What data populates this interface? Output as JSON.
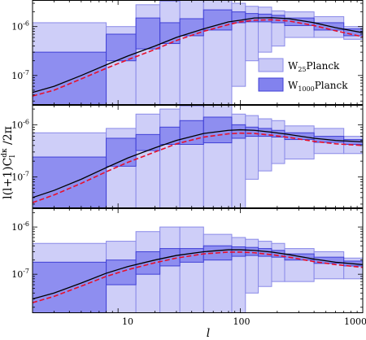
{
  "colors": {
    "wide_fill": "#c9c9f7",
    "wide_edge": "#8a8ae8",
    "narrow_fill": "#8282ee",
    "narrow_edge": "#4040d6",
    "theory": "#000000",
    "model": "#e8102a"
  },
  "chart_data": {
    "type": "bar",
    "xlabel_main": "l",
    "ylabel": {
      "main": "l(l+1)C",
      "sub": "l",
      "sup": "dκ",
      "tail": " /2π"
    },
    "xscale": "log",
    "yscale": "log",
    "xlim": [
      2,
      1000
    ],
    "x_ticks": [
      10,
      100,
      1000
    ],
    "x_tick_labels": [
      "10",
      "100",
      "1000"
    ],
    "y_tick_labels": [
      {
        "base": "10",
        "exp": "-6"
      },
      {
        "base": "10",
        "exp": "-7"
      }
    ],
    "bins": [
      {
        "lo": 2,
        "hi": 8
      },
      {
        "lo": 8,
        "hi": 14
      },
      {
        "lo": 14,
        "hi": 22
      },
      {
        "lo": 22,
        "hi": 32
      },
      {
        "lo": 32,
        "hi": 50
      },
      {
        "lo": 50,
        "hi": 85
      },
      {
        "lo": 85,
        "hi": 110
      },
      {
        "lo": 110,
        "hi": 140
      },
      {
        "lo": 140,
        "hi": 180
      },
      {
        "lo": 180,
        "hi": 230
      },
      {
        "lo": 230,
        "hi": 400
      },
      {
        "lo": 400,
        "hi": 700
      },
      {
        "lo": 700,
        "hi": 1000
      }
    ],
    "legend": {
      "placement": "lower-right of top panel",
      "entries": [
        {
          "base": "W",
          "sub": "25",
          "tail": "Planck",
          "style": "wide"
        },
        {
          "base": "W",
          "sub": "1000",
          "tail": "Planck",
          "style": "narrow"
        }
      ]
    },
    "panels": [
      {
        "ylim": [
          2.5e-08,
          3.5e-06
        ],
        "theory": {
          "l": [
            2,
            3,
            5,
            8,
            12,
            20,
            30,
            50,
            80,
            100,
            130,
            180,
            250,
            400,
            600,
            1000
          ],
          "cl": [
            4.5e-08,
            6e-08,
            1e-07,
            1.65e-07,
            2.5e-07,
            4e-07,
            6e-07,
            9e-07,
            1.25e-06,
            1.35e-06,
            1.5e-06,
            1.52e-06,
            1.45e-06,
            1.2e-06,
            9.5e-07,
            7.5e-07
          ]
        },
        "model": {
          "l": [
            2,
            3,
            5,
            8,
            12,
            20,
            30,
            50,
            80,
            100,
            130,
            180,
            250,
            400,
            600,
            1000
          ],
          "cl": [
            3.8e-08,
            5e-08,
            8.5e-08,
            1.4e-07,
            2.1e-07,
            3.4e-07,
            5.2e-07,
            8e-07,
            1.1e-06,
            1.25e-06,
            1.35e-06,
            1.38e-06,
            1.3e-06,
            1.05e-06,
            8.2e-07,
            6.2e-07
          ]
        },
        "wide": [
          {
            "lo": 2.5e-08,
            "hi": 1.2e-06
          },
          {
            "lo": 2.5e-08,
            "hi": 1e-06
          },
          {
            "lo": 2.5e-08,
            "hi": 2.8e-06
          },
          {
            "lo": 2.5e-08,
            "hi": 3.3e-06
          },
          {
            "lo": 2.5e-08,
            "hi": 3.6e-06
          },
          {
            "lo": 2.5e-08,
            "hi": 3.5e-06
          },
          {
            "lo": 6e-08,
            "hi": 3e-06
          },
          {
            "lo": 2e-07,
            "hi": 2.6e-06
          },
          {
            "lo": 3e-07,
            "hi": 2.5e-06
          },
          {
            "lo": 4e-07,
            "hi": 2.1e-06
          },
          {
            "lo": 6e-07,
            "hi": 2e-06
          },
          {
            "lo": 6e-07,
            "hi": 1.6e-06
          },
          {
            "lo": 5.5e-07,
            "hi": 1e-06
          }
        ],
        "narrow": [
          {
            "lo": 2.5e-08,
            "hi": 3e-07
          },
          {
            "lo": 2e-07,
            "hi": 7e-07
          },
          {
            "lo": 3.5e-07,
            "hi": 1.5e-06
          },
          {
            "lo": 4.5e-07,
            "hi": 1.2e-06
          },
          {
            "lo": 6.5e-07,
            "hi": 1.45e-06
          },
          {
            "lo": 8.5e-07,
            "hi": 2.2e-06
          },
          {
            "lo": 1.2e-06,
            "hi": 2e-06
          },
          {
            "lo": 1.25e-06,
            "hi": 1.85e-06
          },
          {
            "lo": 1.25e-06,
            "hi": 1.8e-06
          },
          {
            "lo": 1.2e-06,
            "hi": 1.7e-06
          },
          {
            "lo": 1.05e-06,
            "hi": 1.5e-06
          },
          {
            "lo": 8.5e-07,
            "hi": 1.2e-06
          },
          {
            "lo": 6.5e-07,
            "hi": 9e-07
          }
        ]
      },
      {
        "ylim": [
          2.5e-08,
          2.4e-06
        ],
        "theory": {
          "l": [
            2,
            3,
            5,
            8,
            12,
            20,
            30,
            50,
            80,
            100,
            130,
            180,
            250,
            400,
            600,
            1000
          ],
          "cl": [
            4e-08,
            5.5e-08,
            9e-08,
            1.5e-07,
            2.3e-07,
            3.6e-07,
            5e-07,
            6.8e-07,
            7.8e-07,
            8e-07,
            7.8e-07,
            7.2e-07,
            6.5e-07,
            5.5e-07,
            5e-07,
            4.7e-07
          ]
        },
        "model": {
          "l": [
            2,
            3,
            5,
            8,
            12,
            20,
            30,
            50,
            80,
            100,
            130,
            180,
            250,
            400,
            600,
            1000
          ],
          "cl": [
            3.2e-08,
            4.5e-08,
            7.5e-08,
            1.25e-07,
            1.9e-07,
            3e-07,
            4.3e-07,
            5.8e-07,
            6.7e-07,
            6.9e-07,
            6.8e-07,
            6.3e-07,
            5.7e-07,
            4.8e-07,
            4.3e-07,
            4e-07
          ]
        },
        "wide": [
          {
            "lo": 2.5e-08,
            "hi": 7e-07
          },
          {
            "lo": 2.5e-08,
            "hi": 8.5e-07
          },
          {
            "lo": 2.5e-08,
            "hi": 1.6e-06
          },
          {
            "lo": 2.5e-08,
            "hi": 2e-06
          },
          {
            "lo": 2.5e-08,
            "hi": 2.3e-06
          },
          {
            "lo": 2.5e-08,
            "hi": 2.4e-06
          },
          {
            "lo": 2.5e-08,
            "hi": 1.6e-06
          },
          {
            "lo": 9e-08,
            "hi": 1.5e-06
          },
          {
            "lo": 1.3e-07,
            "hi": 1.3e-06
          },
          {
            "lo": 1.8e-07,
            "hi": 1.2e-06
          },
          {
            "lo": 2.2e-07,
            "hi": 9.5e-07
          },
          {
            "lo": 2.8e-07,
            "hi": 8.5e-07
          },
          {
            "lo": 2.8e-07,
            "hi": 6e-07
          }
        ],
        "narrow": [
          {
            "lo": 2.5e-08,
            "hi": 2.4e-07
          },
          {
            "lo": 1.6e-07,
            "hi": 5.5e-07
          },
          {
            "lo": 3.2e-07,
            "hi": 6.5e-07
          },
          {
            "lo": 4.2e-07,
            "hi": 9e-07
          },
          {
            "lo": 4.2e-07,
            "hi": 1.2e-06
          },
          {
            "lo": 4.5e-07,
            "hi": 1.4e-06
          },
          {
            "lo": 5.5e-07,
            "hi": 1e-06
          },
          {
            "lo": 6e-07,
            "hi": 9e-07
          },
          {
            "lo": 6e-07,
            "hi": 8.5e-07
          },
          {
            "lo": 5.8e-07,
            "hi": 7.8e-07
          },
          {
            "lo": 5.2e-07,
            "hi": 7e-07
          },
          {
            "lo": 4.6e-07,
            "hi": 6e-07
          },
          {
            "lo": 4.2e-07,
            "hi": 5.2e-07
          }
        ]
      },
      {
        "ylim": [
          1.5e-08,
          2.5e-06
        ],
        "theory": {
          "l": [
            2,
            3,
            5,
            8,
            12,
            20,
            30,
            50,
            80,
            100,
            130,
            180,
            250,
            400,
            600,
            1000
          ],
          "cl": [
            3e-08,
            4e-08,
            6.5e-08,
            1.05e-07,
            1.45e-07,
            2e-07,
            2.5e-07,
            3e-07,
            3.3e-07,
            3.3e-07,
            3.2e-07,
            2.95e-07,
            2.6e-07,
            2.1e-07,
            1.8e-07,
            1.6e-07
          ]
        },
        "model": {
          "l": [
            2,
            3,
            5,
            8,
            12,
            20,
            30,
            50,
            80,
            100,
            130,
            180,
            250,
            400,
            600,
            1000
          ],
          "cl": [
            2.5e-08,
            3.4e-08,
            5.6e-08,
            9e-08,
            1.25e-07,
            1.75e-07,
            2.2e-07,
            2.7e-07,
            2.95e-07,
            2.95e-07,
            2.85e-07,
            2.6e-07,
            2.3e-07,
            1.85e-07,
            1.6e-07,
            1.4e-07
          ]
        },
        "wide": [
          {
            "lo": 1.5e-08,
            "hi": 4.5e-07
          },
          {
            "lo": 1.5e-08,
            "hi": 5e-07
          },
          {
            "lo": 1.5e-08,
            "hi": 8e-07
          },
          {
            "lo": 1.5e-08,
            "hi": 1e-06
          },
          {
            "lo": 1.5e-08,
            "hi": 1e-06
          },
          {
            "lo": 1.5e-08,
            "hi": 7e-07
          },
          {
            "lo": 1.5e-08,
            "hi": 6e-07
          },
          {
            "lo": 4e-08,
            "hi": 5.5e-07
          },
          {
            "lo": 5.5e-08,
            "hi": 5e-07
          },
          {
            "lo": 7e-08,
            "hi": 4.5e-07
          },
          {
            "lo": 7e-08,
            "hi": 3.5e-07
          },
          {
            "lo": 8e-08,
            "hi": 3e-07
          },
          {
            "lo": 8e-08,
            "hi": 2.2e-07
          }
        ],
        "narrow": [
          {
            "lo": 1.5e-08,
            "hi": 1.8e-07
          },
          {
            "lo": 6e-08,
            "hi": 2e-07
          },
          {
            "lo": 1e-07,
            "hi": 3e-07
          },
          {
            "lo": 1.5e-07,
            "hi": 3.5e-07
          },
          {
            "lo": 1.8e-07,
            "hi": 3.5e-07
          },
          {
            "lo": 2e-07,
            "hi": 4e-07
          },
          {
            "lo": 2.4e-07,
            "hi": 3.8e-07
          },
          {
            "lo": 2.5e-07,
            "hi": 3.7e-07
          },
          {
            "lo": 2.4e-07,
            "hi": 3.5e-07
          },
          {
            "lo": 2.3e-07,
            "hi": 3.2e-07
          },
          {
            "lo": 2e-07,
            "hi": 2.7e-07
          },
          {
            "lo": 1.7e-07,
            "hi": 2.3e-07
          },
          {
            "lo": 1.5e-07,
            "hi": 1.9e-07
          }
        ]
      }
    ]
  }
}
